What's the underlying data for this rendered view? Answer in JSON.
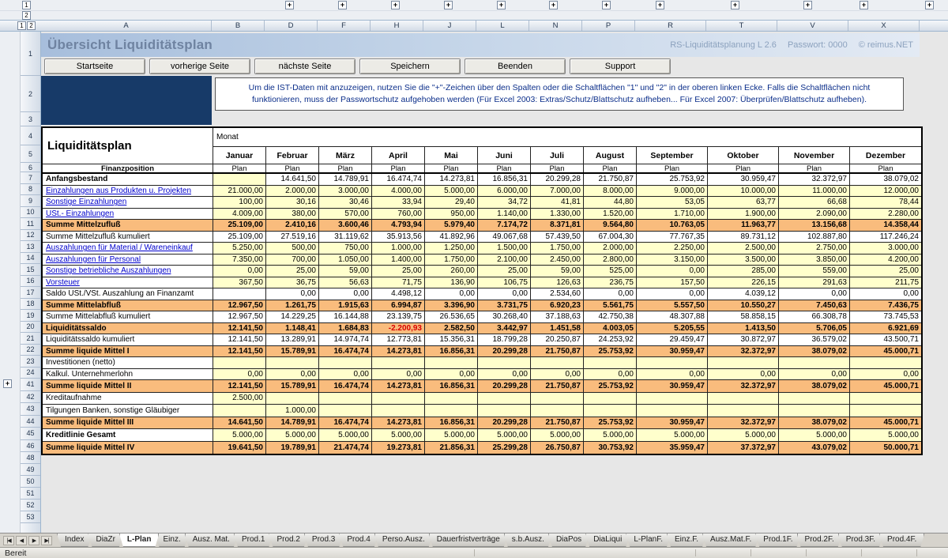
{
  "colors": {
    "summary_row_orange": "#F9BC7D",
    "input_cell_yellow": "#FFFFCC",
    "navy_block_blue": "#173A68",
    "banner_blue": "#A7BEDC",
    "link_blue": "#0000CC",
    "negative_red": "#D80000"
  },
  "header": {
    "title": "Übersicht Liquiditätsplan",
    "brand": "RS-Liquiditätsplanung L 2.6",
    "password": "Passwort: 0000",
    "copyright": "© reimus.NET",
    "buttons": [
      "Startseite",
      "vorherige Seite",
      "nächste Seite",
      "Speichern",
      "Beenden",
      "Support"
    ],
    "info_text": "Um die IST-Daten mit anzuzeigen, nutzen Sie die \"+\"-Zeichen über den Spalten oder die Schaltflächen \"1\" und \"2\" in der oberen linken Ecke. Falls die Schaltflächen nicht funktionieren, muss der Passwortschutz aufgehoben werden (Für Excel 2003: Extras/Schutz/Blattschutz aufheben... Für Excel 2007: Überprüfen/Blattschutz aufheben)."
  },
  "spreadsheet": {
    "outline_levels": [
      "1",
      "2"
    ],
    "outline_plus": "+",
    "column_letters": [
      "A",
      "B",
      "D",
      "F",
      "H",
      "J",
      "L",
      "N",
      "P",
      "R",
      "T",
      "V",
      "X"
    ],
    "row_numbers": [
      1,
      2,
      3,
      4,
      5,
      6,
      7,
      8,
      9,
      10,
      11,
      12,
      13,
      14,
      15,
      16,
      17,
      18,
      19,
      20,
      21,
      22,
      23,
      24,
      41,
      42,
      43,
      44,
      45,
      46,
      48,
      49,
      50,
      51,
      52,
      53
    ],
    "table": {
      "title": "Liquiditätsplan",
      "finanzposition_label": "Finanzposition",
      "month_label": "Monat",
      "plan_label": "Plan",
      "months": [
        "Januar",
        "Februar",
        "März",
        "April",
        "Mai",
        "Juni",
        "Juli",
        "August",
        "September",
        "Oktober",
        "November",
        "Dezember"
      ],
      "rows": [
        {
          "num": 7,
          "label": "Anfangsbestand",
          "label_style": "bold",
          "bg": "white",
          "first_cell_yellow": true,
          "values": [
            "",
            "14.641,50",
            "14.789,91",
            "16.474,74",
            "14.273,81",
            "16.856,31",
            "20.299,28",
            "21.750,87",
            "25.753,92",
            "30.959,47",
            "32.372,97",
            "38.079,02"
          ]
        },
        {
          "num": 8,
          "label": "Einzahlungen aus Produkten u. Projekten",
          "label_style": "link",
          "bg": "yellow",
          "values": [
            "21.000,00",
            "2.000,00",
            "3.000,00",
            "4.000,00",
            "5.000,00",
            "6.000,00",
            "7.000,00",
            "8.000,00",
            "9.000,00",
            "10.000,00",
            "11.000,00",
            "12.000,00"
          ]
        },
        {
          "num": 9,
          "label": "Sonstige Einzahlungen",
          "label_style": "link",
          "bg": "yellow",
          "values": [
            "100,00",
            "30,16",
            "30,46",
            "33,94",
            "29,40",
            "34,72",
            "41,81",
            "44,80",
            "53,05",
            "63,77",
            "66,68",
            "78,44"
          ]
        },
        {
          "num": 10,
          "label": "USt.- Einzahlungen",
          "label_style": "link",
          "bg": "yellow",
          "values": [
            "4.009,00",
            "380,00",
            "570,00",
            "760,00",
            "950,00",
            "1.140,00",
            "1.330,00",
            "1.520,00",
            "1.710,00",
            "1.900,00",
            "2.090,00",
            "2.280,00"
          ]
        },
        {
          "num": 11,
          "label": "Summe Mittelzufluß",
          "label_style": "bold",
          "bg": "orange",
          "values": [
            "25.109,00",
            "2.410,16",
            "3.600,46",
            "4.793,94",
            "5.979,40",
            "7.174,72",
            "8.371,81",
            "9.564,80",
            "10.763,05",
            "11.963,77",
            "13.156,68",
            "14.358,44"
          ]
        },
        {
          "num": 12,
          "label": "Summe Mittelzufluß kumuliert",
          "label_style": "plain",
          "bg": "white",
          "values": [
            "25.109,00",
            "27.519,16",
            "31.119,62",
            "35.913,56",
            "41.892,96",
            "49.067,68",
            "57.439,50",
            "67.004,30",
            "77.767,35",
            "89.731,12",
            "102.887,80",
            "117.246,24"
          ]
        },
        {
          "num": 13,
          "label": "Auszahlungen für Material / Wareneinkauf",
          "label_style": "link",
          "bg": "yellow",
          "values": [
            "5.250,00",
            "500,00",
            "750,00",
            "1.000,00",
            "1.250,00",
            "1.500,00",
            "1.750,00",
            "2.000,00",
            "2.250,00",
            "2.500,00",
            "2.750,00",
            "3.000,00"
          ]
        },
        {
          "num": 14,
          "label": "Auszahlungen für Personal",
          "label_style": "link",
          "bg": "yellow",
          "values": [
            "7.350,00",
            "700,00",
            "1.050,00",
            "1.400,00",
            "1.750,00",
            "2.100,00",
            "2.450,00",
            "2.800,00",
            "3.150,00",
            "3.500,00",
            "3.850,00",
            "4.200,00"
          ]
        },
        {
          "num": 15,
          "label": "Sonstige betriebliche Auszahlungen",
          "label_style": "link",
          "bg": "yellow",
          "values": [
            "0,00",
            "25,00",
            "59,00",
            "25,00",
            "260,00",
            "25,00",
            "59,00",
            "525,00",
            "0,00",
            "285,00",
            "559,00",
            "25,00"
          ]
        },
        {
          "num": 16,
          "label": "Vorsteuer",
          "label_style": "link",
          "bg": "yellow",
          "values": [
            "367,50",
            "36,75",
            "56,63",
            "71,75",
            "136,90",
            "106,75",
            "126,63",
            "236,75",
            "157,50",
            "226,15",
            "291,63",
            "211,75"
          ]
        },
        {
          "num": 17,
          "label": "Saldo USt./VSt. Auszahlung an Finanzamt",
          "label_style": "plain",
          "bg": "white",
          "values": [
            "",
            "0,00",
            "0,00",
            "4.498,12",
            "0,00",
            "0,00",
            "2.534,60",
            "0,00",
            "0,00",
            "4.039,12",
            "0,00",
            "0,00"
          ]
        },
        {
          "num": 18,
          "label": "Summe Mittelabfluß",
          "label_style": "bold",
          "bg": "orange",
          "values": [
            "12.967,50",
            "1.261,75",
            "1.915,63",
            "6.994,87",
            "3.396,90",
            "3.731,75",
            "6.920,23",
            "5.561,75",
            "5.557,50",
            "10.550,27",
            "7.450,63",
            "7.436,75"
          ]
        },
        {
          "num": 19,
          "label": "Summe Mittelabfluß kumuliert",
          "label_style": "plain",
          "bg": "white",
          "values": [
            "12.967,50",
            "14.229,25",
            "16.144,88",
            "23.139,75",
            "26.536,65",
            "30.268,40",
            "37.188,63",
            "42.750,38",
            "48.307,88",
            "58.858,15",
            "66.308,78",
            "73.745,53"
          ]
        },
        {
          "num": 20,
          "label": "Liquiditätssaldo",
          "label_style": "bold",
          "bg": "orange",
          "values": [
            "12.141,50",
            "1.148,41",
            "1.684,83",
            "-2.200,93",
            "2.582,50",
            "3.442,97",
            "1.451,58",
            "4.003,05",
            "5.205,55",
            "1.413,50",
            "5.706,05",
            "6.921,69"
          ]
        },
        {
          "num": 21,
          "label": "Liquiditätssaldo kumuliert",
          "label_style": "plain",
          "bg": "white",
          "values": [
            "12.141,50",
            "13.289,91",
            "14.974,74",
            "12.773,81",
            "15.356,31",
            "18.799,28",
            "20.250,87",
            "24.253,92",
            "29.459,47",
            "30.872,97",
            "36.579,02",
            "43.500,71"
          ]
        },
        {
          "num": 22,
          "label": "Summe liquide Mittel I",
          "label_style": "bold",
          "bg": "orange",
          "values": [
            "12.141,50",
            "15.789,91",
            "16.474,74",
            "14.273,81",
            "16.856,31",
            "20.299,28",
            "21.750,87",
            "25.753,92",
            "30.959,47",
            "32.372,97",
            "38.079,02",
            "45.000,71"
          ]
        },
        {
          "num": 23,
          "label": "Investitionen (netto)",
          "label_style": "plain",
          "bg": "yellow",
          "values": [
            "",
            "",
            "",
            "",
            "",
            "",
            "",
            "",
            "",
            "",
            "",
            ""
          ]
        },
        {
          "num": 24,
          "label": "Kalkul. Unternehmerlohn",
          "label_style": "plain",
          "bg": "yellow",
          "values": [
            "0,00",
            "0,00",
            "0,00",
            "0,00",
            "0,00",
            "0,00",
            "0,00",
            "0,00",
            "0,00",
            "0,00",
            "0,00",
            "0,00"
          ]
        },
        {
          "num": 41,
          "label": "Summe liquide Mittel II",
          "label_style": "bold",
          "bg": "orange",
          "values": [
            "12.141,50",
            "15.789,91",
            "16.474,74",
            "14.273,81",
            "16.856,31",
            "20.299,28",
            "21.750,87",
            "25.753,92",
            "30.959,47",
            "32.372,97",
            "38.079,02",
            "45.000,71"
          ]
        },
        {
          "num": 42,
          "label": "Kreditaufnahme",
          "label_style": "plain",
          "bg": "yellow",
          "values": [
            "2.500,00",
            "",
            "",
            "",
            "",
            "",
            "",
            "",
            "",
            "",
            "",
            ""
          ]
        },
        {
          "num": 43,
          "label": "Tilgungen Banken, sonstige Gläubiger",
          "label_style": "plain",
          "bg": "yellow",
          "values": [
            "",
            "1.000,00",
            "",
            "",
            "",
            "",
            "",
            "",
            "",
            "",
            "",
            ""
          ]
        },
        {
          "num": 44,
          "label": "Summe liquide Mittel III",
          "label_style": "bold",
          "bg": "orange",
          "values": [
            "14.641,50",
            "14.789,91",
            "16.474,74",
            "14.273,81",
            "16.856,31",
            "20.299,28",
            "21.750,87",
            "25.753,92",
            "30.959,47",
            "32.372,97",
            "38.079,02",
            "45.000,71"
          ]
        },
        {
          "num": 45,
          "label": "Kreditlinie Gesamt",
          "label_style": "bold",
          "bg": "yellow",
          "values": [
            "5.000,00",
            "5.000,00",
            "5.000,00",
            "5.000,00",
            "5.000,00",
            "5.000,00",
            "5.000,00",
            "5.000,00",
            "5.000,00",
            "5.000,00",
            "5.000,00",
            "5.000,00"
          ]
        },
        {
          "num": 46,
          "label": "Summe liquide Mittel IV",
          "label_style": "bold",
          "bg": "orange",
          "values": [
            "19.641,50",
            "19.789,91",
            "21.474,74",
            "19.273,81",
            "21.856,31",
            "25.299,28",
            "26.750,87",
            "30.753,92",
            "35.959,47",
            "37.372,97",
            "43.079,02",
            "50.000,71"
          ]
        }
      ]
    }
  },
  "tabs": {
    "nav": [
      "|◀",
      "◀",
      "▶",
      "▶|"
    ],
    "items": [
      "Index",
      "DiaZr",
      "L-Plan",
      "Einz.",
      "Ausz. Mat.",
      "Prod.1",
      "Prod.2",
      "Prod.3",
      "Prod.4",
      "Perso.Ausz.",
      "Dauerfristverträge",
      "s.b.Ausz.",
      "DiaPos",
      "DiaLiqui",
      "L-PlanF.",
      "Einz.F.",
      "Ausz.Mat.F.",
      "Prod.1F.",
      "Prod.2F.",
      "Prod.3F.",
      "Prod.4F."
    ],
    "active": "L-Plan"
  },
  "status": {
    "left": "Bereit"
  }
}
